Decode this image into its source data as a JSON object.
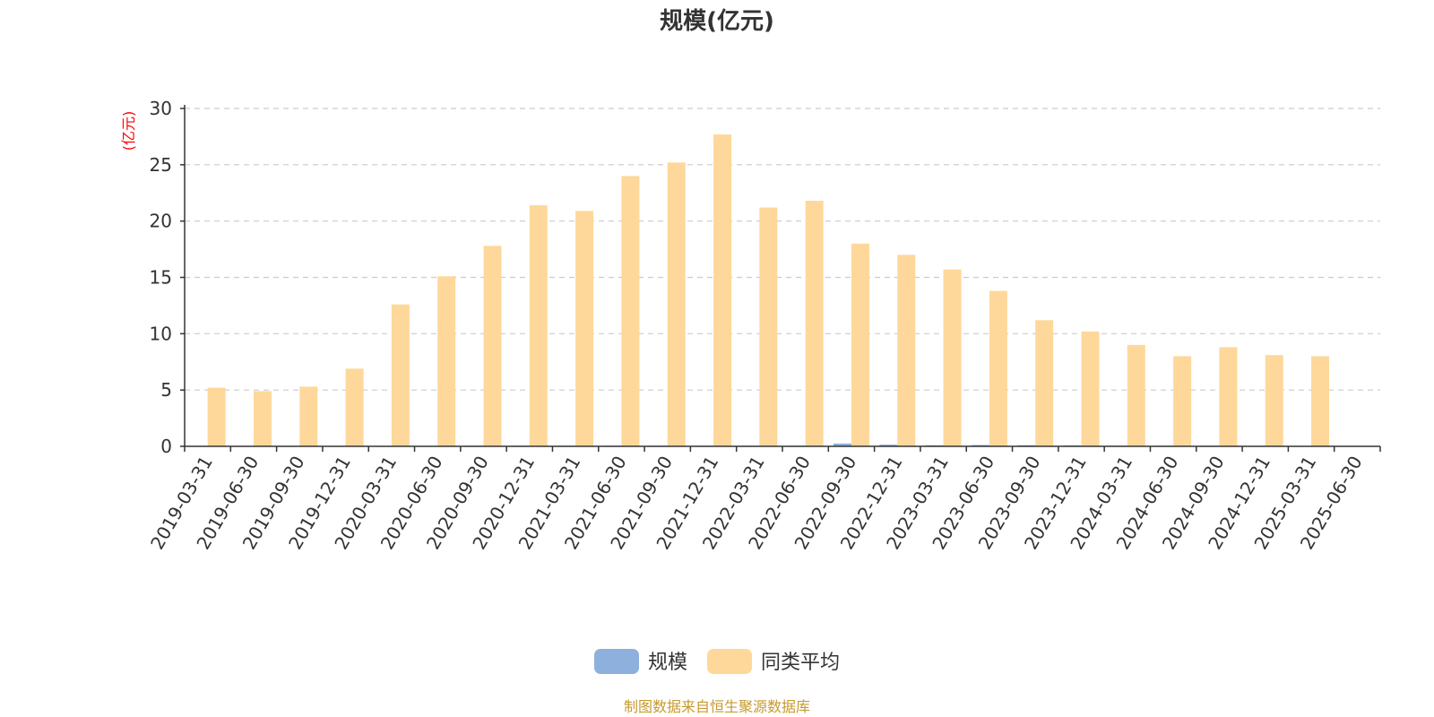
{
  "chart_data": {
    "type": "bar",
    "title": "规模(亿元)",
    "ylabel": "(亿元)",
    "ylim": [
      0,
      30
    ],
    "yticks": [
      0,
      5,
      10,
      15,
      20,
      25,
      30
    ],
    "grid": true,
    "legend_position": "bottom",
    "categories": [
      "2019-03-31",
      "2019-06-30",
      "2019-09-30",
      "2019-12-31",
      "2020-03-31",
      "2020-06-30",
      "2020-09-30",
      "2020-12-31",
      "2021-03-31",
      "2021-06-30",
      "2021-09-30",
      "2021-12-31",
      "2022-03-31",
      "2022-06-30",
      "2022-09-30",
      "2022-12-31",
      "2023-03-31",
      "2023-06-30",
      "2023-09-30",
      "2023-12-31",
      "2024-03-31",
      "2024-06-30",
      "2024-09-30",
      "2024-12-31",
      "2025-03-31",
      "2025-06-30"
    ],
    "series": [
      {
        "name": "规模",
        "color": "#8eb0dc",
        "values": [
          0.02,
          0.02,
          0.02,
          0.02,
          0.02,
          0.02,
          0.05,
          0.05,
          0.05,
          0.05,
          0.05,
          0.05,
          0.05,
          0.05,
          0.25,
          0.15,
          0.1,
          0.12,
          0.1,
          0.08,
          0.06,
          0.05,
          0.05,
          0.04,
          0.03,
          0.02
        ]
      },
      {
        "name": "同类平均",
        "color": "#fed89a",
        "values": [
          5.2,
          4.9,
          5.3,
          6.9,
          12.6,
          15.1,
          17.8,
          21.4,
          20.9,
          24.0,
          25.2,
          27.7,
          21.2,
          21.8,
          18.0,
          17.0,
          15.7,
          13.8,
          11.2,
          10.2,
          9.0,
          8.0,
          8.8,
          8.1,
          8.0,
          0
        ]
      }
    ]
  },
  "footer": {
    "source": "制图数据来自恒生聚源数据库"
  }
}
